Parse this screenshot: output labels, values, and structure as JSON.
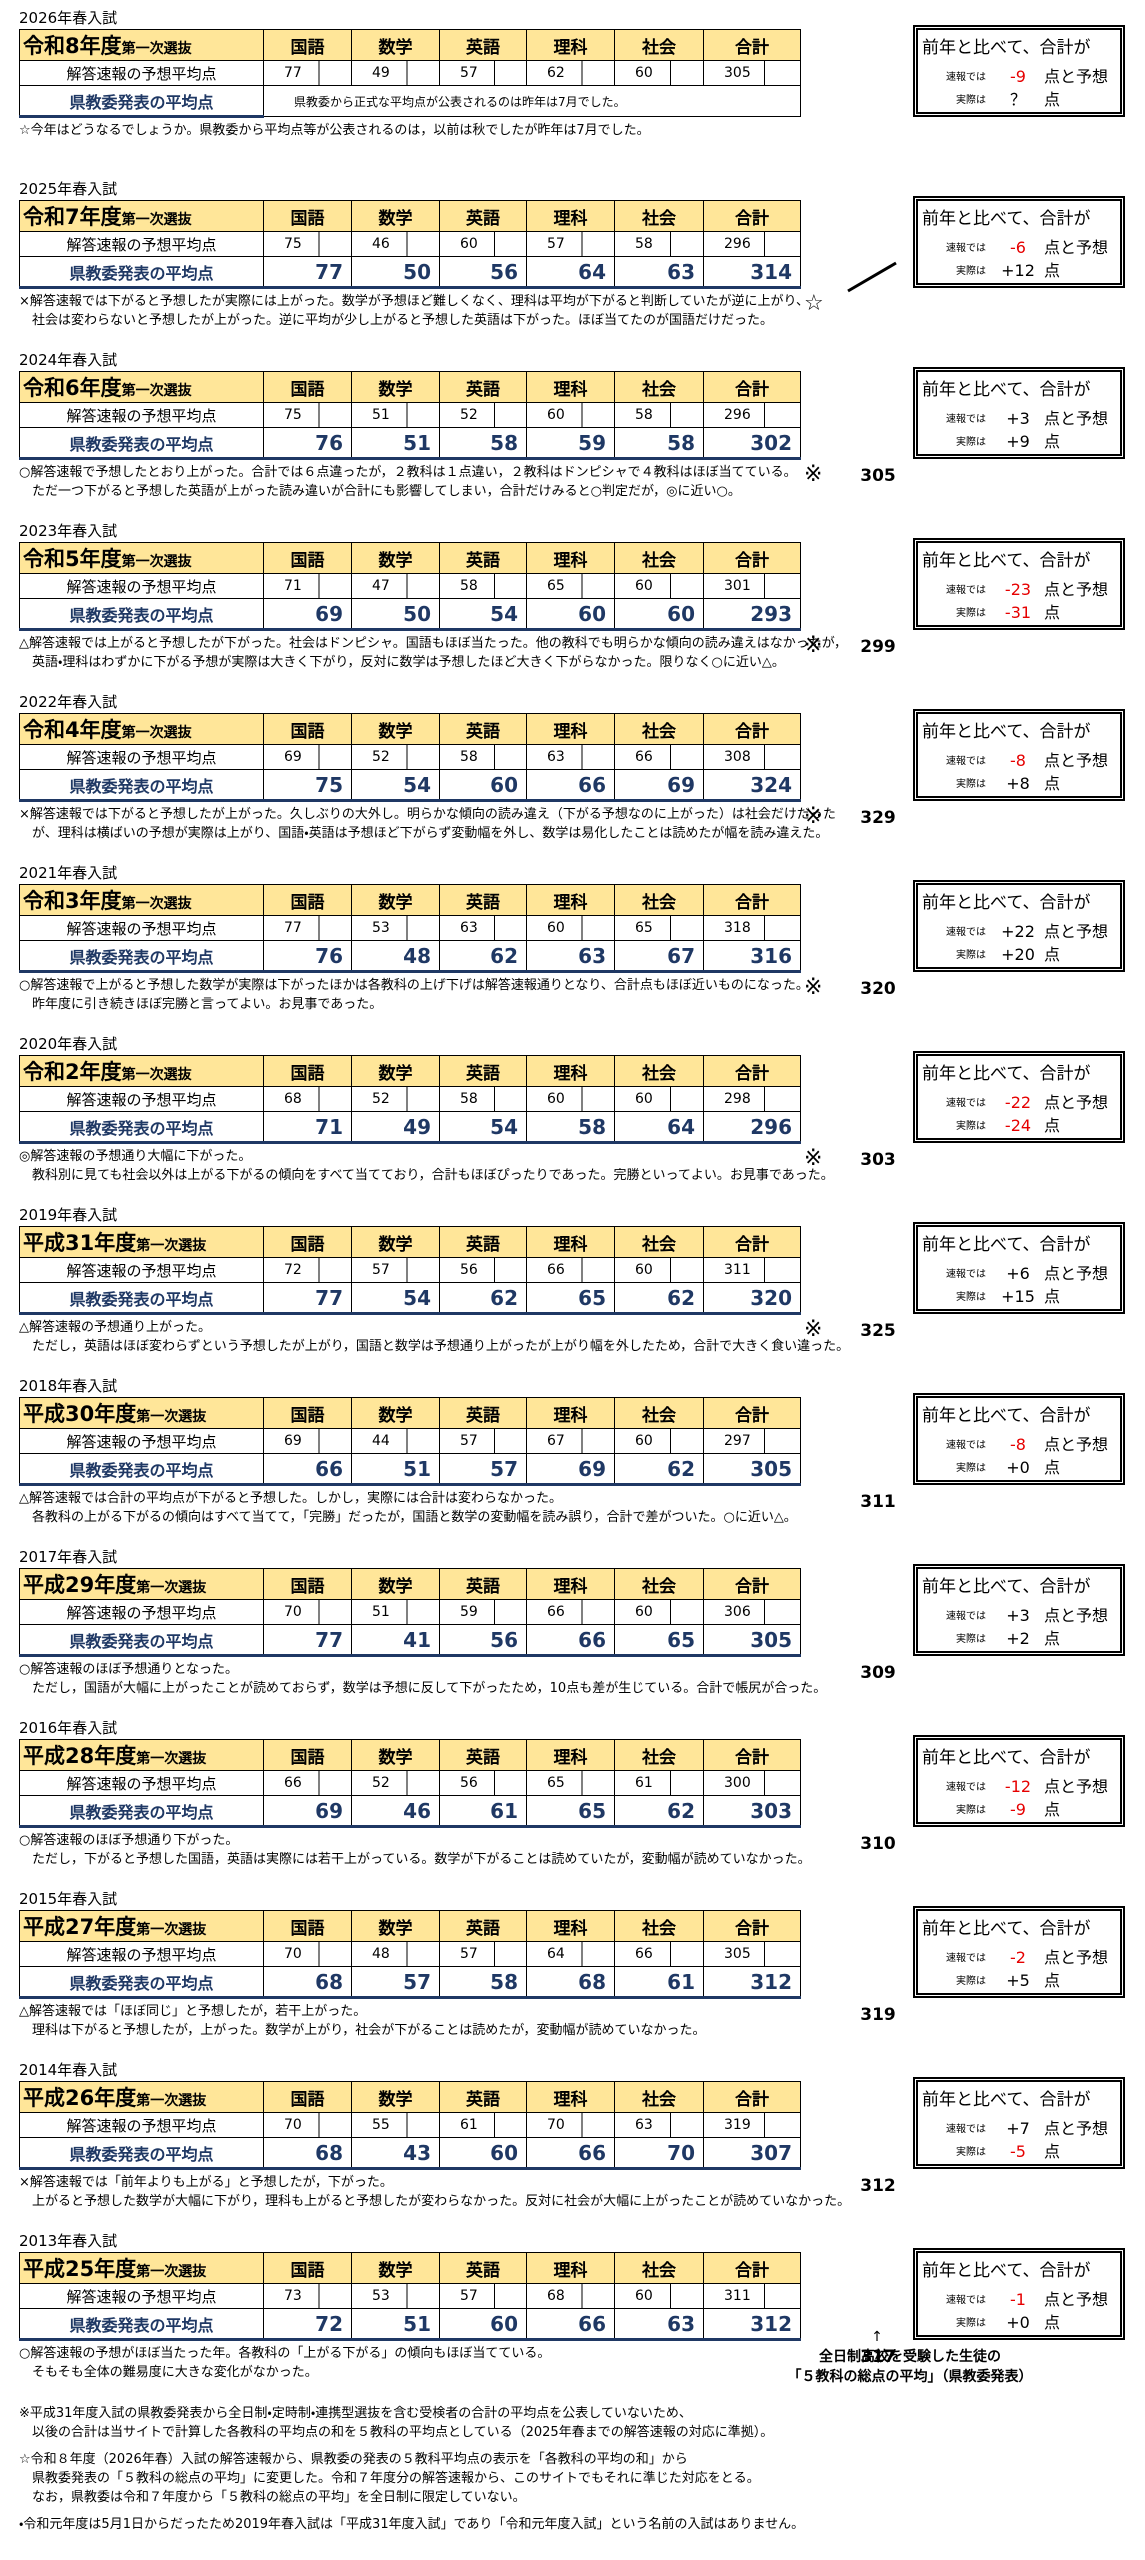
{
  "common": {
    "selection": "第一次選抜",
    "subjects": [
      "国語",
      "数学",
      "英語",
      "理科",
      "社会",
      "合計"
    ],
    "predicted_label": "解答速報の予想平均点",
    "actual_label": "県教委発表の平均点",
    "heading": "前年と比べて、合計が",
    "prelim_label": "速報では",
    "prelim_unit": "点と予想",
    "real_label": "実際は",
    "real_unit": "点"
  },
  "blocks": [
    {
      "year_label": "2026年春入試",
      "era": "令和8年度",
      "predicted": [
        77,
        49,
        57,
        62,
        60,
        305
      ],
      "actual_note": "県教委から正式な平均点が公表されるのは昨年は7月でした。",
      "notes": [
        "☆今年はどうなるでしょうか。県教委から平均点等が公表されるのは，以前は秋でしたが昨年は7月でした。"
      ],
      "prelim": "-9",
      "real": "？"
    },
    {
      "year_label": "2025年春入試",
      "era": "令和7年度",
      "predicted": [
        75,
        46,
        60,
        57,
        58,
        296
      ],
      "actual": [
        77,
        50,
        56,
        64,
        63,
        314
      ],
      "mark": "☆",
      "notes": [
        "×解答速報では下がると予想したが実際には上がった。数学が予想ほど難しくなく、理科は平均が下がると判断していたが逆に上がり、",
        "社会は変わらないと予想したが上がった。逆に平均が少し上がると予想した英語は下がった。ほぼ当てたのが国語だけだった。"
      ],
      "prelim": "-6",
      "real": "+12"
    },
    {
      "year_label": "2024年春入試",
      "era": "令和6年度",
      "predicted": [
        75,
        51,
        52,
        60,
        58,
        296
      ],
      "actual": [
        76,
        51,
        58,
        59,
        58,
        302
      ],
      "mark": "※",
      "reported_total": 305,
      "notes": [
        "○解答速報で予想したとおり上がった。合計では６点違ったが，２教科は１点違い，２教科はドンピシャで４教科はほぼ当てている。",
        "ただ一つ下がると予想した英語が上がった読み違いが合計にも影響してしまい，合計だけみると○判定だが，◎に近い○。"
      ],
      "prelim": "+3",
      "real": "+9"
    },
    {
      "year_label": "2023年春入試",
      "era": "令和5年度",
      "predicted": [
        71,
        47,
        58,
        65,
        60,
        301
      ],
      "actual": [
        69,
        50,
        54,
        60,
        60,
        293
      ],
      "mark": "※",
      "reported_total": 299,
      "notes": [
        "△解答速報では上がると予想したが下がった。社会はドンピシャ。国語もほぼ当たった。他の教科でも明らかな傾向の読み違えはなかったが，",
        "英語・理科はわずかに下がる予想が実際は大きく下がり，反対に数学は予想したほど大きく下がらなかった。限りなく○に近い△。"
      ],
      "prelim": "-23",
      "real": "-31"
    },
    {
      "year_label": "2022年春入試",
      "era": "令和4年度",
      "predicted": [
        69,
        52,
        58,
        63,
        66,
        308
      ],
      "actual": [
        75,
        54,
        60,
        66,
        69,
        324
      ],
      "mark": "※",
      "reported_total": 329,
      "notes": [
        "×解答速報では下がると予想したが上がった。久しぶりの大外し。明らかな傾向の読み違え（下がる予想なのに上がった）は社会だけだった",
        "が、理科は横ばいの予想が実際は上がり、国語・英語は予想ほど下がらず変動幅を外し、数学は易化したことは読めたが幅を読み違えた。"
      ],
      "prelim": "-8",
      "real": "+8"
    },
    {
      "year_label": "2021年春入試",
      "era": "令和3年度",
      "predicted": [
        77,
        53,
        63,
        60,
        65,
        318
      ],
      "actual": [
        76,
        48,
        62,
        63,
        67,
        316
      ],
      "mark": "※",
      "reported_total": 320,
      "notes": [
        "○解答速報で上がると予想した数学が実際は下がったほかは各教科の上げ下げは解答速報通りとなり、合計点もほぼ近いものになった。",
        "昨年度に引き続きほぼ完勝と言ってよい。お見事であった。"
      ],
      "prelim": "+22",
      "real": "+20"
    },
    {
      "year_label": "2020年春入試",
      "era": "令和2年度",
      "predicted": [
        68,
        52,
        58,
        60,
        60,
        298
      ],
      "actual": [
        71,
        49,
        54,
        58,
        64,
        296
      ],
      "mark": "※",
      "reported_total": 303,
      "notes": [
        "◎解答速報の予想通り大幅に下がった。",
        "教科別に見ても社会以外は上がる下がるの傾向をすべて当てており，合計もほぼぴったりであった。完勝といってよい。お見事であった。"
      ],
      "prelim": "-22",
      "real": "-24"
    },
    {
      "year_label": "2019年春入試",
      "era": "平成31年度",
      "predicted": [
        72,
        57,
        56,
        66,
        60,
        311
      ],
      "actual": [
        77,
        54,
        62,
        65,
        62,
        320
      ],
      "mark": "※",
      "reported_total": 325,
      "notes": [
        "△解答速報の予想通り上がった。",
        "ただし，英語はほぼ変わらずという予想したが上がり，国語と数学は予想通り上がったが上がり幅を外したため，合計で大きく食い違った。"
      ],
      "prelim": "+6",
      "real": "+15"
    },
    {
      "year_label": "2018年春入試",
      "era": "平成30年度",
      "predicted": [
        69,
        44,
        57,
        67,
        60,
        297
      ],
      "actual": [
        66,
        51,
        57,
        69,
        62,
        305
      ],
      "reported_total": 311,
      "notes": [
        "△解答速報では合計の平均点が下がると予想した。しかし，実際には合計は変わらなかった。",
        "各教科の上がる下がるの傾向はすべて当てて，「完勝」だったが，国語と数学の変動幅を読み誤り，合計で差がついた。○に近い△。"
      ],
      "prelim": "-8",
      "real": "+0"
    },
    {
      "year_label": "2017年春入試",
      "era": "平成29年度",
      "predicted": [
        70,
        51,
        59,
        66,
        60,
        306
      ],
      "actual": [
        77,
        41,
        56,
        66,
        65,
        305
      ],
      "reported_total": 309,
      "notes": [
        "○解答速報のほぼ予想通りとなった。",
        "ただし，国語が大幅に上がったことが読めておらず，数学は予想に反して下がったため，10点も差が生じている。合計で帳尻が合った。"
      ],
      "prelim": "+3",
      "real": "+2"
    },
    {
      "year_label": "2016年春入試",
      "era": "平成28年度",
      "predicted": [
        66,
        52,
        56,
        65,
        61,
        300
      ],
      "actual": [
        69,
        46,
        61,
        65,
        62,
        303
      ],
      "reported_total": 310,
      "notes": [
        "○解答速報のほぼ予想通り下がった。",
        "ただし，下がると予想した国語，英語は実際には若干上がっている。数学が下がることは読めていたが，変動幅が読めていなかった。"
      ],
      "prelim": "-12",
      "real": "-9"
    },
    {
      "year_label": "2015年春入試",
      "era": "平成27年度",
      "predicted": [
        70,
        48,
        57,
        64,
        66,
        305
      ],
      "actual": [
        68,
        57,
        58,
        68,
        61,
        312
      ],
      "reported_total": 319,
      "notes": [
        "△解答速報では「ほぼ同じ」と予想したが，若干上がった。",
        "理科は下がると予想したが，上がった。数学が上がり，社会が下がることは読めたが，変動幅が読めていなかった。"
      ],
      "prelim": "-2",
      "real": "+5"
    },
    {
      "year_label": "2014年春入試",
      "era": "平成26年度",
      "predicted": [
        70,
        55,
        61,
        70,
        63,
        319
      ],
      "actual": [
        68,
        43,
        60,
        66,
        70,
        307
      ],
      "reported_total": 312,
      "notes": [
        "×解答速報では「前年よりも上がる」と予想したが，下がった。",
        "上がると予想した数学が大幅に下がり，理科も上がると予想したが変わらなかった。反対に社会が大幅に上がったことが読めていなかった。"
      ],
      "prelim": "+7",
      "real": "-5"
    },
    {
      "year_label": "2013年春入試",
      "era": "平成25年度",
      "predicted": [
        73,
        53,
        57,
        68,
        60,
        311
      ],
      "actual": [
        72,
        51,
        60,
        66,
        63,
        312
      ],
      "reported_total": 317,
      "notes": [
        "○解答速報の予想がほぼ当たった年。各教科の「上がる下がる」の傾向もほぼ当てている。",
        "そもそも全体の難易度に大きな変化がなかった。"
      ],
      "prelim": "-1",
      "real": "+0"
    }
  ],
  "total_note": {
    "arrow": "↑",
    "lines": [
      "全日制高校を受験した生徒の",
      "「５教科の総点の平均」（県教委発表）"
    ]
  },
  "footer": [
    [
      "※平成31年度入試の県教委発表から全日制・定時制・連携型選抜を含む受検者の合計の平均点を公表していないため、",
      "以後の合計は当サイトで計算した各教科の平均点の和を５教科の平均点としている（2025年春までの解答速報の対応に準拠）。"
    ],
    [
      "☆令和８年度（2026年春）入試の解答速報から、県教委の発表の５教科平均点の表示を「各教科の平均の和」から",
      "県教委発表の「５教科の総点の平均」に変更した。令和７年度分の解答速報から、このサイトでもそれに準じた対応をとる。",
      "なお，県教委は令和７年度から「５教科の総点の平均」を全日制に限定していない。"
    ],
    [
      "・令和元年度は5月1日からだったため2019年春入試は「平成31年度入試」であり「令和元年度入試」という名前の入試はありません。"
    ]
  ]
}
